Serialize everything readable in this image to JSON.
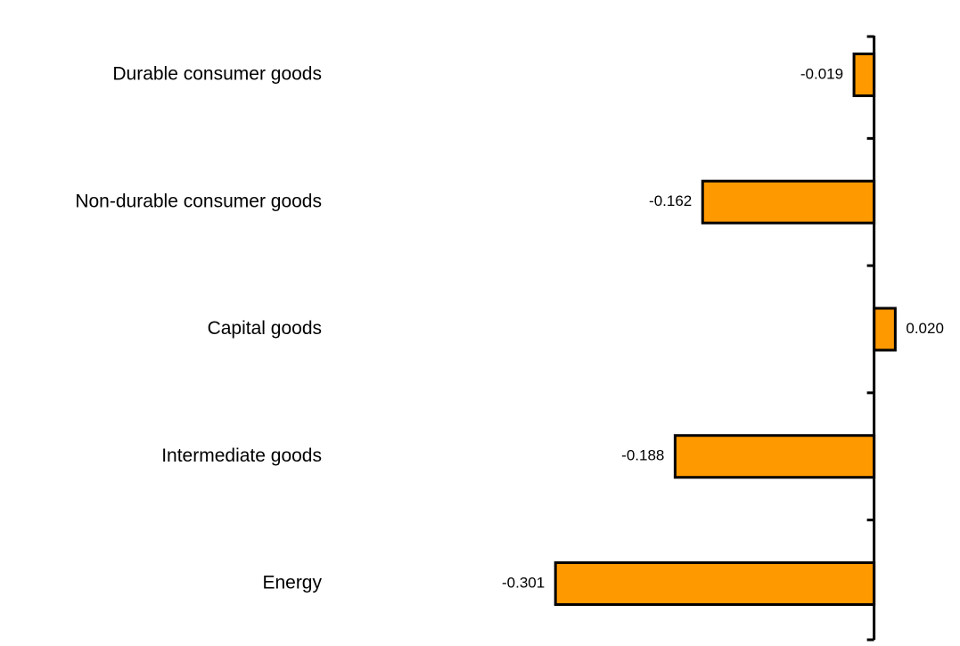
{
  "chart_data": {
    "type": "bar",
    "orientation": "horizontal",
    "categories": [
      "Durable consumer goods",
      "Non-durable consumer goods",
      "Capital goods",
      "Intermediate goods",
      "Energy"
    ],
    "values": [
      -0.019,
      -0.162,
      0.02,
      -0.188,
      -0.301
    ],
    "value_labels": [
      "-0.019",
      "-0.162",
      "0.020",
      "-0.188",
      "-0.301"
    ],
    "color": "#ff9900",
    "xlim": [
      -0.35,
      0.05
    ]
  }
}
